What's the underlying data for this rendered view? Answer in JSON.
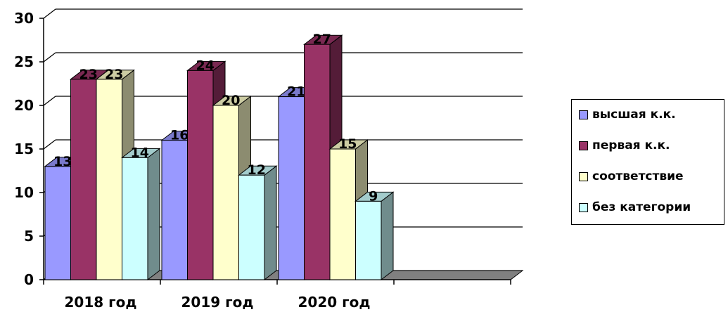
{
  "chart_data": {
    "type": "bar",
    "categories": [
      "2018 год",
      "2019 год",
      "2020 год"
    ],
    "series": [
      {
        "name": "высшая к.к.",
        "values": [
          13,
          16,
          21
        ],
        "color": "#9999ff"
      },
      {
        "name": "первая к.к.",
        "values": [
          23,
          24,
          27
        ],
        "color": "#993366"
      },
      {
        "name": "соответствие",
        "values": [
          23,
          20,
          15
        ],
        "color": "#ffffcc"
      },
      {
        "name": "без категории",
        "values": [
          14,
          12,
          9
        ],
        "color": "#ccffff"
      }
    ],
    "ylim": [
      0,
      30
    ],
    "yticks": [
      "0",
      "5",
      "10",
      "15",
      "20",
      "25",
      "30"
    ],
    "grid": true,
    "legend": "right",
    "style": "3d-clustered"
  }
}
